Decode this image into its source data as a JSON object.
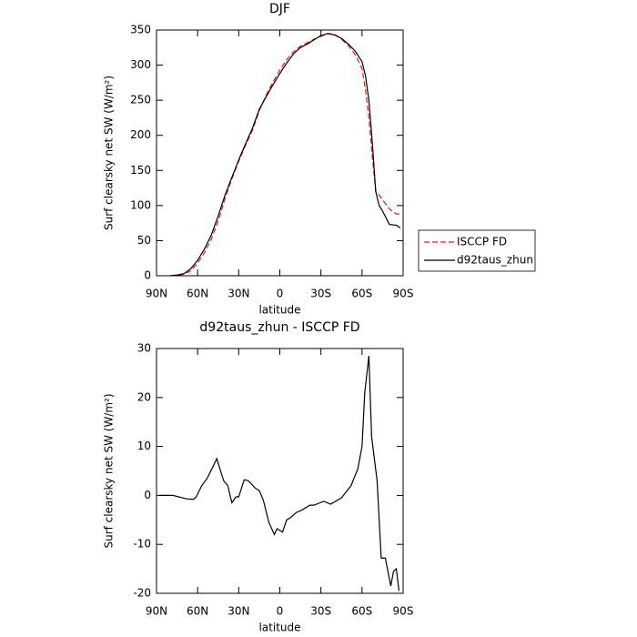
{
  "chart_data": [
    {
      "type": "line",
      "title": "DJF",
      "x_label": "latitude",
      "y_label": "Surf clearsky net SW (W/m²)",
      "x": [
        80,
        75,
        70,
        65,
        60,
        55,
        50,
        45,
        40,
        35,
        30,
        25,
        20,
        15,
        10,
        5,
        0,
        -5,
        -10,
        -15,
        -20,
        -25,
        -30,
        -35,
        -40,
        -45,
        -50,
        -55,
        -60,
        -62.5,
        -65,
        -67.5,
        -70,
        -72.5,
        -75,
        -80,
        -85,
        -88
      ],
      "series": [
        {
          "name": "ISCCP FD",
          "color": "#e41a1c",
          "dashed": true,
          "values": [
            0,
            1,
            2,
            7,
            18,
            33,
            52,
            78,
            110,
            138,
            163,
            186,
            207,
            235,
            257,
            276,
            293,
            308,
            319,
            327,
            332,
            337,
            341,
            345,
            344,
            337,
            328,
            315,
            295,
            265,
            225,
            170,
            120,
            115,
            108,
            95,
            88,
            88
          ]
        },
        {
          "name": "d92taus_zhun",
          "color": "#000000",
          "dashed": false,
          "values": [
            0,
            1,
            3,
            10,
            22,
            38,
            58,
            85,
            115,
            140,
            165,
            188,
            210,
            237,
            255,
            272,
            288,
            303,
            316,
            325,
            330,
            336,
            342,
            345,
            343,
            338,
            330,
            320,
            305,
            285,
            250,
            190,
            120,
            100,
            92,
            73,
            72,
            68
          ]
        }
      ],
      "xlim": [
        90,
        -90
      ],
      "xticks": [
        {
          "value": 90,
          "label": "90N"
        },
        {
          "value": 60,
          "label": "60N"
        },
        {
          "value": 30,
          "label": "30N"
        },
        0,
        {
          "value": -30,
          "label": "30S"
        },
        {
          "value": -60,
          "label": "60S"
        },
        {
          "value": -90,
          "label": "90S"
        }
      ],
      "ylim": [
        0,
        350
      ],
      "yticks": [
        0,
        50,
        100,
        150,
        200,
        250,
        300,
        350
      ],
      "legend": "right"
    },
    {
      "type": "line",
      "title": "d92taus_zhun - ISCCP FD",
      "x_label": "latitude",
      "y_label": "Surf clearsky net SW (W/m²)",
      "x": [
        88,
        78,
        68,
        63,
        61,
        57,
        53,
        46,
        41,
        38,
        35,
        32,
        30,
        26,
        23,
        18,
        15,
        12,
        8,
        4,
        2,
        -2,
        -5,
        -8,
        -12,
        -16,
        -22,
        -25,
        -32,
        -37,
        -42,
        -45,
        -52,
        -57,
        -60,
        -62,
        -65,
        -67,
        -71,
        -74,
        -77,
        -81,
        -83,
        -85,
        -87
      ],
      "series": [
        {
          "color": "#000000",
          "dashed": false,
          "values": [
            0,
            0,
            -0.7,
            -0.8,
            -0.3,
            2,
            3.5,
            7.5,
            3,
            2,
            -1.5,
            -0.3,
            -0.3,
            3.2,
            3,
            1.5,
            1,
            -1,
            -5.5,
            -8,
            -6.8,
            -7.5,
            -5,
            -4.5,
            -3.5,
            -3,
            -2,
            -2,
            -1.2,
            -1.8,
            -1,
            -0.5,
            2,
            5.5,
            10,
            21,
            28.5,
            12,
            3,
            -12.8,
            -12.8,
            -18.5,
            -15.5,
            -15,
            -19.5
          ]
        }
      ],
      "xlim": [
        90,
        -90
      ],
      "xticks": [
        {
          "value": 90,
          "label": "90N"
        },
        {
          "value": 60,
          "label": "60N"
        },
        {
          "value": 30,
          "label": "30N"
        },
        0,
        {
          "value": -30,
          "label": "30S"
        },
        {
          "value": -60,
          "label": "60S"
        },
        {
          "value": -90,
          "label": "90S"
        }
      ],
      "ylim": [
        -20,
        30
      ],
      "yticks": [
        -20,
        -10,
        0,
        10,
        20,
        30
      ]
    }
  ]
}
